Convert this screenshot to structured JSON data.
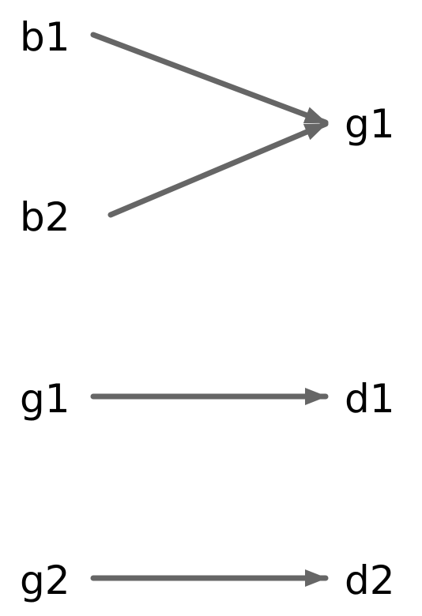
{
  "colors": {
    "edge": "#666666",
    "label": "#000000",
    "background": "#ffffff"
  },
  "nodes": [
    {
      "id": "b1",
      "label": "b1"
    },
    {
      "id": "b2",
      "label": "b2"
    },
    {
      "id": "g1_top",
      "label": "g1"
    },
    {
      "id": "g1_bottom",
      "label": "g1"
    },
    {
      "id": "d1",
      "label": "d1"
    },
    {
      "id": "g2",
      "label": "g2"
    },
    {
      "id": "d2",
      "label": "d2"
    }
  ],
  "edges": [
    {
      "from": "b1",
      "to": "g1_top"
    },
    {
      "from": "b2",
      "to": "g1_top"
    },
    {
      "from": "g1_bottom",
      "to": "d1"
    },
    {
      "from": "g2",
      "to": "d2"
    }
  ]
}
